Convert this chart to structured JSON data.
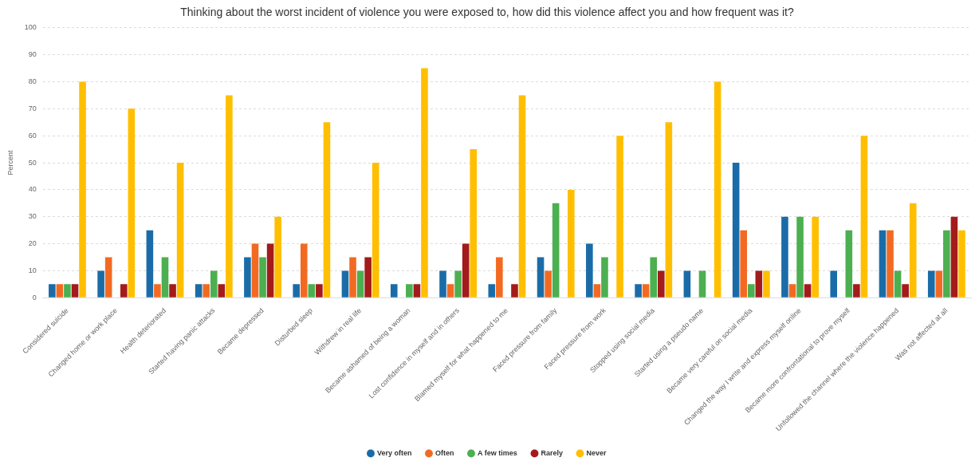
{
  "chart_data": {
    "type": "bar",
    "title": "Thinking about the worst incident of violence you were exposed to, how did this violence affect you and how frequent was it?",
    "ylabel": "Percent",
    "categories": [
      "Considered suicide",
      "Changed home or work place",
      "Health deteriorated",
      "Started having panic attacks",
      "Became depressed",
      "Disturbed sleep",
      "Withdrew in real life",
      "Became ashamed of being a woman",
      "Lost confidence in myself and in others",
      "Blamed myself for what happened to me",
      "Faced pressure from family",
      "Faced pressure from work",
      "Stopped using social media",
      "Started using a pseudo name",
      "Became very careful on social media",
      "Changed the way I write and express myself online",
      "Became more confrontational to prove myself",
      "Unfollowed the channel where the violence happened",
      "Was not affected at all"
    ],
    "series": [
      {
        "name": "Very often",
        "color": "#1a6ca8",
        "values": [
          5,
          10,
          25,
          5,
          15,
          5,
          10,
          5,
          10,
          5,
          15,
          20,
          5,
          10,
          50,
          30,
          10,
          25,
          10
        ]
      },
      {
        "name": "Often",
        "color": "#f26a22",
        "values": [
          5,
          15,
          5,
          5,
          20,
          20,
          15,
          null,
          5,
          15,
          10,
          5,
          5,
          null,
          25,
          5,
          null,
          25,
          10
        ]
      },
      {
        "name": "A few times",
        "color": "#4caf50",
        "values": [
          5,
          null,
          15,
          10,
          15,
          5,
          10,
          5,
          10,
          null,
          35,
          15,
          15,
          10,
          5,
          30,
          25,
          10,
          25
        ]
      },
      {
        "name": "Rarely",
        "color": "#a31b1b",
        "values": [
          5,
          5,
          5,
          5,
          20,
          5,
          15,
          5,
          20,
          5,
          null,
          null,
          10,
          null,
          10,
          5,
          5,
          5,
          30
        ]
      },
      {
        "name": "Never",
        "color": "#ffbf00",
        "values": [
          80,
          70,
          50,
          75,
          30,
          65,
          50,
          85,
          55,
          75,
          40,
          60,
          65,
          80,
          10,
          30,
          60,
          35,
          25
        ]
      }
    ],
    "ylim": [
      0,
      100
    ],
    "yticks": [
      0,
      10,
      20,
      30,
      40,
      50,
      60,
      70,
      80,
      90,
      100
    ],
    "grid": "y",
    "legend": "bottom"
  }
}
